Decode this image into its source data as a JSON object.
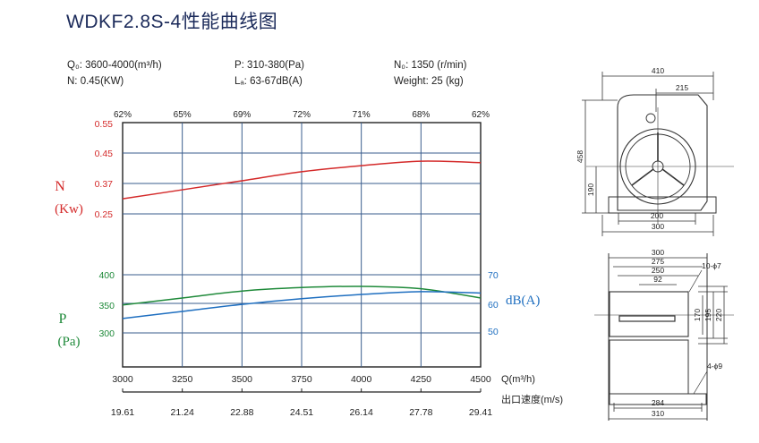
{
  "title": "WDKF2.8S-4性能曲线图",
  "specs": {
    "q": "Q₀: 3600-4000(m³/h)",
    "n_power": "N: 0.45(KW)",
    "p": "P: 310-380(Pa)",
    "la": "Lₐ: 63-67dB(A)",
    "speed": "N₀: 1350 (r/min)",
    "weight": "Weight: 25 (kg)"
  },
  "chart_data": {
    "type": "line",
    "x": [
      3000,
      3250,
      3500,
      3750,
      4000,
      4250,
      4500
    ],
    "x_tick_labels": [
      "3000",
      "3250",
      "3500",
      "3750",
      "4000",
      "4250",
      "4500"
    ],
    "xlabel": "Q(m³/h)",
    "xlim": [
      3000,
      4500
    ],
    "secondary_x_label": "出口速度(m/s)",
    "secondary_x_values": [
      "19.61",
      "21.24",
      "22.88",
      "24.51",
      "26.14",
      "27.78",
      "29.41"
    ],
    "efficiency_labels": [
      "62%",
      "65%",
      "69%",
      "72%",
      "71%",
      "68%",
      "62%"
    ],
    "n_axis": {
      "label_line1": "N",
      "label_line2": "(Kw)",
      "ticks": [
        "0.55",
        "0.45",
        "0.37",
        "0.25"
      ],
      "color": "#d42a2a"
    },
    "p_axis": {
      "label_line1": "P",
      "label_line2": "(Pa)",
      "ticks": [
        "400",
        "350",
        "300"
      ],
      "color": "#1f8a3a"
    },
    "db_axis": {
      "label": "dB(A)",
      "ticks": [
        "70",
        "60",
        "50"
      ],
      "color": "#1f6fc0"
    },
    "series": [
      {
        "axis": "N",
        "color": "#d42a2a",
        "values": [
          0.3,
          0.33,
          0.36,
          0.39,
          0.41,
          0.425,
          0.42
        ]
      },
      {
        "axis": "P",
        "color": "#1f8a3a",
        "values": [
          348,
          360,
          372,
          378,
          380,
          376,
          360
        ]
      },
      {
        "axis": "dB",
        "color": "#1f6fc0",
        "values": [
          54.5,
          57,
          59.5,
          61.5,
          63,
          64,
          63.5
        ]
      }
    ]
  },
  "drawings": {
    "front": {
      "dims": [
        "410",
        "215",
        "458",
        "190",
        "200",
        "300"
      ]
    },
    "side": {
      "dims": [
        "300",
        "275",
        "250",
        "92",
        "10-ϕ7",
        "170",
        "195",
        "220",
        "4-ϕ9",
        "284",
        "310"
      ]
    }
  }
}
